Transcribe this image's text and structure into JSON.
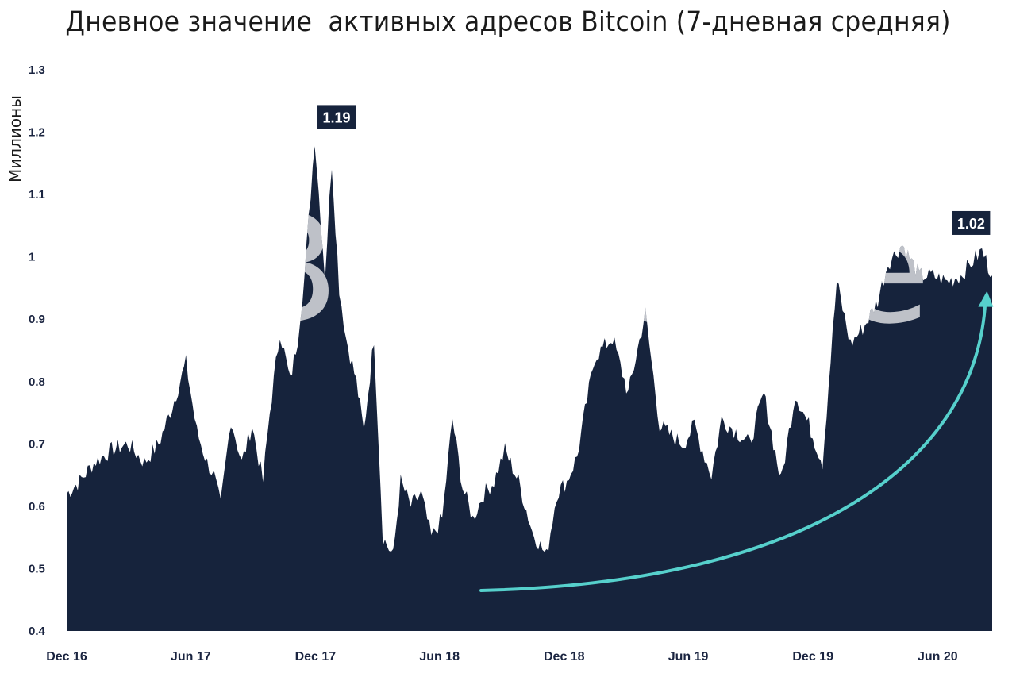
{
  "title": "Дневное значение  активных адресов Bitcoin (7-дневная средняя)",
  "watermark": "@BitOracle",
  "colors": {
    "area": "#16233c",
    "arrow": "#56d0cc",
    "text": "#1a2440",
    "background": "#ffffff"
  },
  "chart_data": {
    "type": "area",
    "title": "Дневное значение  активных адресов Bitcoin (7-дневная средняя)",
    "ylabel": "Миллионы",
    "xlabel": "",
    "ylim": [
      0.4,
      1.3
    ],
    "yticks": [
      0.4,
      0.5,
      0.6,
      0.7,
      0.8,
      0.9,
      1.0,
      1.1,
      1.2,
      1.3
    ],
    "ytick_labels": [
      "0.4",
      "0.5",
      "0.6",
      "0.7",
      "0.8",
      "0.9",
      "1",
      "1.1",
      "1.2",
      "1.3"
    ],
    "xlim": [
      "2016-12-01",
      "2020-08-20"
    ],
    "xticks": [
      "2016-12-01",
      "2017-06-01",
      "2017-12-01",
      "2018-06-01",
      "2018-12-01",
      "2019-06-01",
      "2019-12-01",
      "2020-06-01"
    ],
    "xtick_labels": [
      "Dec 16",
      "Jun 17",
      "Dec 17",
      "Jun 18",
      "Dec 18",
      "Jun 19",
      "Dec 19",
      "Jun 20"
    ],
    "grid": false,
    "legend": "none",
    "series": [
      {
        "x": [
          "2016-12-01",
          "2016-12-20",
          "2017-01-10",
          "2017-02-05",
          "2017-03-01",
          "2017-03-25",
          "2017-04-15",
          "2017-05-05",
          "2017-05-25",
          "2017-06-10",
          "2017-06-25",
          "2017-07-05",
          "2017-07-15",
          "2017-07-30",
          "2017-08-15",
          "2017-08-30",
          "2017-09-15",
          "2017-09-25",
          "2017-10-10",
          "2017-10-25",
          "2017-11-05",
          "2017-11-15",
          "2017-11-30",
          "2017-12-15",
          "2017-12-25",
          "2018-01-05",
          "2018-01-15",
          "2018-01-30",
          "2018-02-10",
          "2018-02-25",
          "2018-03-10",
          "2018-03-25",
          "2018-04-05",
          "2018-04-20",
          "2018-05-05",
          "2018-05-20",
          "2018-06-05",
          "2018-06-20",
          "2018-07-05",
          "2018-07-20",
          "2018-08-05",
          "2018-08-20",
          "2018-09-05",
          "2018-09-25",
          "2018-10-15",
          "2018-11-05",
          "2018-11-20",
          "2018-12-05",
          "2018-12-20",
          "2019-01-15",
          "2019-02-10",
          "2019-03-05",
          "2019-03-30",
          "2019-04-20",
          "2019-05-10",
          "2019-05-25",
          "2019-06-10",
          "2019-06-25",
          "2019-07-05",
          "2019-07-20",
          "2019-08-10",
          "2019-08-30",
          "2019-09-20",
          "2019-10-15",
          "2019-11-05",
          "2019-11-25",
          "2019-12-15",
          "2020-01-05",
          "2020-01-25",
          "2020-02-15",
          "2020-03-05",
          "2020-03-20",
          "2020-04-10",
          "2020-05-05",
          "2020-05-25",
          "2020-06-15",
          "2020-07-05",
          "2020-07-20",
          "2020-08-05",
          "2020-08-20"
        ],
        "y": [
          0.62,
          0.64,
          0.67,
          0.69,
          0.7,
          0.67,
          0.7,
          0.76,
          0.83,
          0.72,
          0.67,
          0.65,
          0.6,
          0.74,
          0.67,
          0.73,
          0.64,
          0.75,
          0.88,
          0.8,
          0.87,
          0.97,
          1.19,
          0.97,
          1.15,
          0.95,
          0.87,
          0.8,
          0.72,
          0.87,
          0.55,
          0.52,
          0.64,
          0.6,
          0.62,
          0.55,
          0.58,
          0.74,
          0.63,
          0.58,
          0.62,
          0.64,
          0.69,
          0.64,
          0.56,
          0.52,
          0.62,
          0.64,
          0.68,
          0.84,
          0.87,
          0.78,
          0.91,
          0.73,
          0.71,
          0.7,
          0.73,
          0.68,
          0.65,
          0.74,
          0.72,
          0.7,
          0.78,
          0.64,
          0.78,
          0.73,
          0.67,
          0.96,
          0.86,
          0.89,
          0.93,
          0.99,
          1.02,
          0.97,
          0.97,
          0.96,
          0.97,
          0.99,
          1.01,
          0.97
        ]
      }
    ],
    "annotations": [
      {
        "x": "2018-01-01",
        "y": 1.19,
        "text": "1.19"
      },
      {
        "x": "2020-07-20",
        "y": 1.02,
        "text": "1.02"
      }
    ]
  }
}
